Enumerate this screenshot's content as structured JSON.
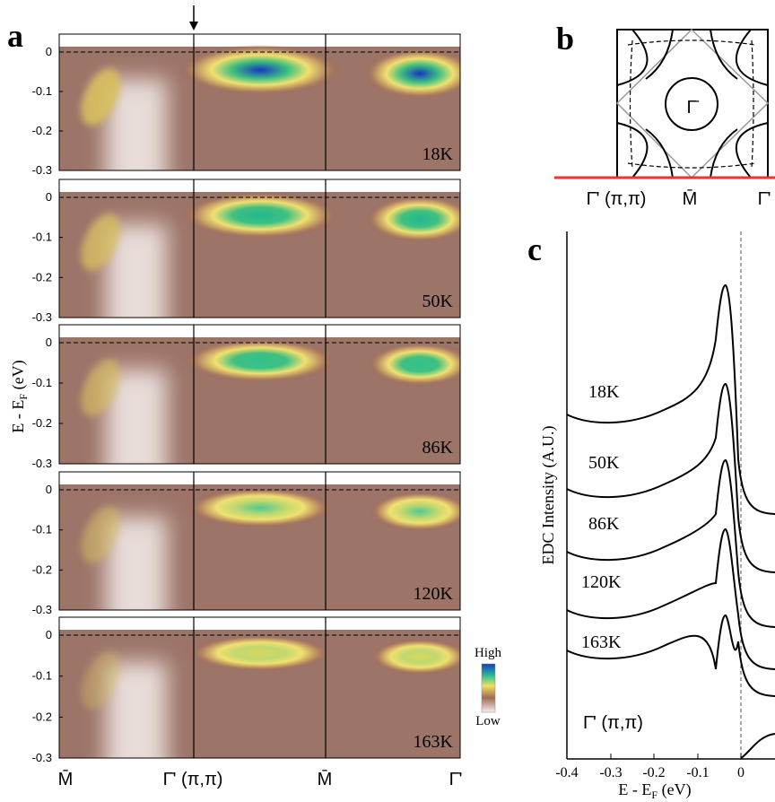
{
  "panel_a": {
    "letter": "a",
    "yticks": [
      "0",
      "-0.1",
      "-0.2",
      "-0.3"
    ],
    "ylabel": {
      "main": "E - E",
      "sub": "F",
      "unit": " (eV)"
    },
    "temperatures": [
      "18K",
      "50K",
      "86K",
      "120K",
      "163K"
    ],
    "xlabels": [
      "M̄",
      "Γ̄' (π,π)",
      "M̄",
      "Γ̄'"
    ],
    "colorbar": {
      "high": "High",
      "low": "Low"
    }
  },
  "panel_b": {
    "letter": "b",
    "center": "Γ̄",
    "xlabels": [
      "Γ̄' (π,π)",
      "M̄",
      "Γ̄'"
    ]
  },
  "panel_c": {
    "letter": "c",
    "curve_labels": [
      "18K",
      "50K",
      "86K",
      "120K",
      "163K"
    ],
    "point_label": "Γ̄' (π,π)",
    "xticks": [
      "-0.4",
      "-0.3",
      "-0.2",
      "-0.1",
      "0"
    ],
    "xlabel": {
      "main": "E - E",
      "sub": "F",
      "unit": " (eV)"
    },
    "ylabel": "EDC Intensity (A.U.)"
  }
}
